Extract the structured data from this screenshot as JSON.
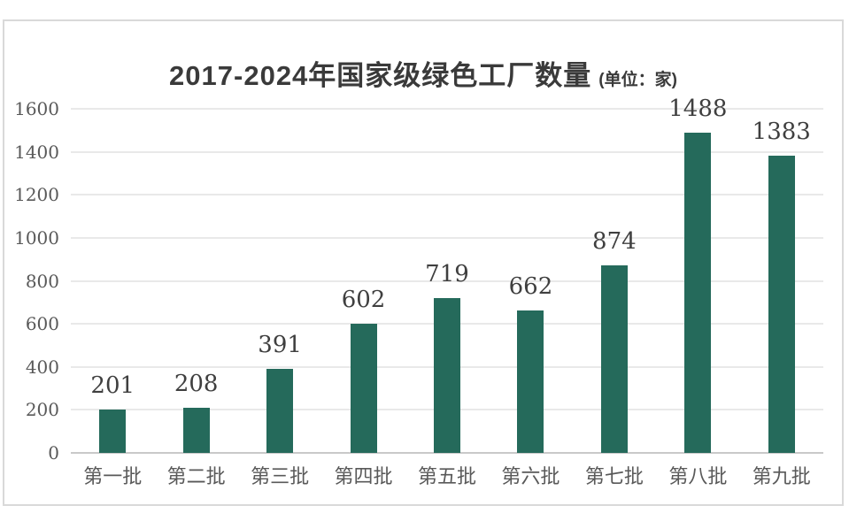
{
  "chart": {
    "title": "2017-2024年国家级绿色工厂数量",
    "unit_label": "(单位：家)"
  },
  "chart_data": {
    "type": "bar",
    "title": "2017-2024年国家级绿色工厂数量",
    "subtitle": "(单位：家)",
    "categories": [
      "第一批",
      "第二批",
      "第三批",
      "第四批",
      "第五批",
      "第六批",
      "第七批",
      "第八批",
      "第九批"
    ],
    "values": [
      201,
      208,
      391,
      602,
      719,
      662,
      874,
      1488,
      1383
    ],
    "xlabel": "",
    "ylabel": "",
    "ylim": [
      0,
      1600
    ],
    "yticks": [
      0,
      200,
      400,
      600,
      800,
      1000,
      1200,
      1400,
      1600
    ],
    "grid": true,
    "legend": false,
    "data_labels": true,
    "colors": {
      "bar": "#256A5B",
      "gridline": "#E9E9E9",
      "axis_line": "#C9C9C9",
      "title_text": "#3A3A3A",
      "tick_text": "#595959",
      "value_text": "#3F3F3F",
      "frame_border": "#D9D9D9",
      "background": "#FFFFFF"
    }
  }
}
